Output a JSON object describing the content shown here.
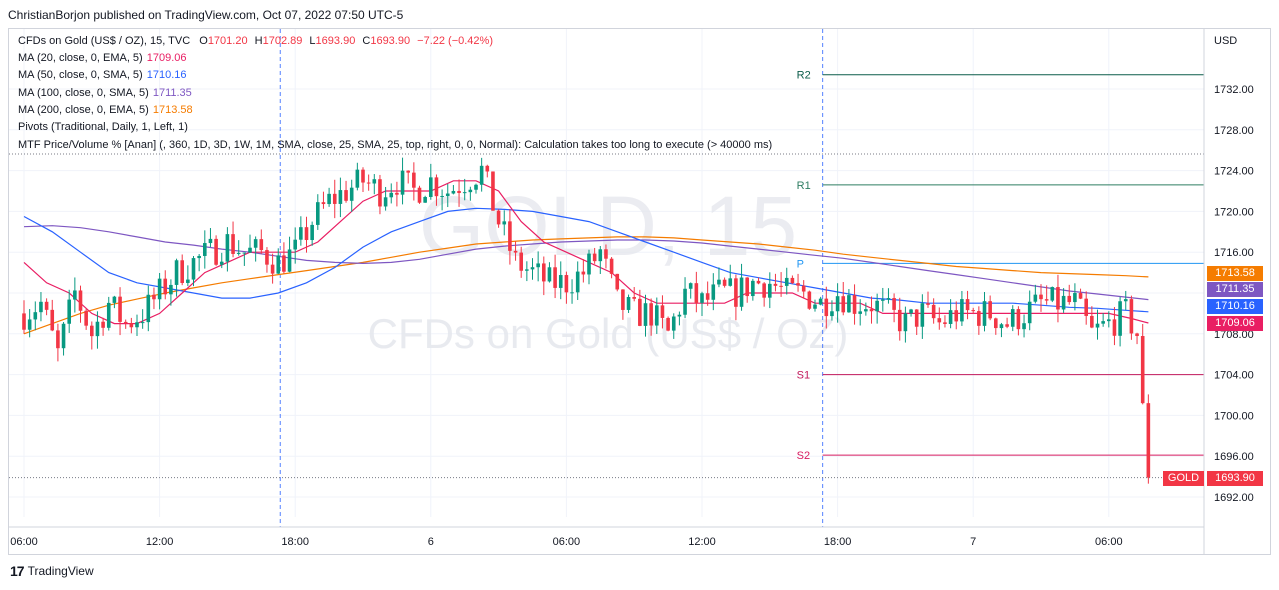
{
  "header": {
    "published_by": "ChristianBorjon published on TradingView.com, Oct 07, 2022 07:50 UTC-5"
  },
  "legend": {
    "instrument": "CFDs on Gold (US$ / OZ), 15, TVC",
    "ohlc": {
      "o_label": "O",
      "o": "1701.20",
      "h_label": "H",
      "h": "1702.89",
      "l_label": "L",
      "l": "1693.90",
      "c_label": "C",
      "c": "1693.90",
      "change": "−7.22 (−0.42%)"
    },
    "indicators": [
      {
        "label": "MA (20, close, 0, EMA, 5)",
        "value": "1709.06",
        "color": "#e91e63"
      },
      {
        "label": "MA (50, close, 0, SMA, 5)",
        "value": "1710.16",
        "color": "#2962ff"
      },
      {
        "label": "MA (100, close, 0, SMA, 5)",
        "value": "1711.35",
        "color": "#7e57c2"
      },
      {
        "label": "MA (200, close, 0, EMA, 5)",
        "value": "1713.58",
        "color": "#f57c00"
      },
      {
        "label": "Pivots (Traditional, Daily, 1, Left, 1)",
        "value": "",
        "color": "#131722"
      },
      {
        "label": "MTF Price/Volume % [Anan] (, 360, 1D, 3D, 1W, 1M, SMA, close, 25, SMA, 25, top, right, 0, 0, Normal): Calculation takes too long to execute (> 40000 ms)",
        "value": "",
        "color": "#131722"
      }
    ]
  },
  "watermark": {
    "symbol": "GOLD, 15",
    "name": "CFDs on Gold (US$ / OZ)"
  },
  "footer": {
    "logo": "17",
    "brand": "TradingView"
  },
  "chart_data": {
    "type": "candlestick",
    "currency": "USD",
    "ylim": [
      1690,
      1736
    ],
    "y_ticks": [
      1692,
      1696,
      1700,
      1704,
      1708,
      1712,
      1716,
      1720,
      1724,
      1728,
      1732
    ],
    "y_tick_labels": [
      "1692.00",
      "1696.00",
      "1700.00",
      "1704.00",
      "1708.00",
      "1712.00",
      "1716.00",
      "1720.00",
      "1724.00",
      "1728.00",
      "1732.00"
    ],
    "x_ticks": [
      {
        "label": "06:00",
        "bar": 0
      },
      {
        "label": "12:00",
        "bar": 24
      },
      {
        "label": "18:00",
        "bar": 48
      },
      {
        "label": "6",
        "bar": 72
      },
      {
        "label": "06:00",
        "bar": 96
      },
      {
        "label": "12:00",
        "bar": 120
      },
      {
        "label": "18:00",
        "bar": 144
      },
      {
        "label": "7",
        "bar": 168
      },
      {
        "label": "06:00",
        "bar": 192
      }
    ],
    "session_breaks": [
      45,
      141
    ],
    "pivots": [
      {
        "name": "R2",
        "value": 1733.4,
        "color": "#0b5d4a",
        "from_bar": 141
      },
      {
        "name": "R1",
        "value": 1722.6,
        "color": "#2e7d62",
        "from_bar": 141
      },
      {
        "name": "P",
        "value": 1714.9,
        "color": "#2196f3",
        "from_bar": 141
      },
      {
        "name": "S1",
        "value": 1704.0,
        "color": "#c2185b",
        "from_bar": 141
      },
      {
        "name": "S2",
        "value": 1696.1,
        "color": "#d81b60",
        "from_bar": 141
      }
    ],
    "last_price": {
      "symbol": "GOLD",
      "value": "1693.90",
      "y": 1693.9
    },
    "ma_tags": [
      {
        "name": "MA200",
        "value": "1713.58",
        "y": 1713.58,
        "color": "#f57c00"
      },
      {
        "name": "MA100",
        "value": "1711.35",
        "y": 1711.35,
        "color": "#7e57c2"
      },
      {
        "name": "MA50",
        "value": "1710.16",
        "y": 1710.16,
        "color": "#2962ff"
      },
      {
        "name": "MA20",
        "value": "1709.06",
        "y": 1709.06,
        "color": "#e91e63"
      }
    ],
    "series": {
      "close_path": [
        [
          0,
          1710
        ],
        [
          3,
          1711
        ],
        [
          6,
          1706
        ],
        [
          9,
          1712
        ],
        [
          12,
          1708
        ],
        [
          15,
          1711
        ],
        [
          18,
          1709
        ],
        [
          21,
          1710
        ],
        [
          24,
          1712
        ],
        [
          27,
          1714
        ],
        [
          30,
          1715
        ],
        [
          33,
          1716
        ],
        [
          36,
          1717
        ],
        [
          39,
          1716
        ],
        [
          42,
          1716
        ],
        [
          45,
          1715
        ],
        [
          48,
          1716
        ],
        [
          51,
          1719
        ],
        [
          54,
          1721
        ],
        [
          57,
          1722
        ],
        [
          60,
          1723
        ],
        [
          63,
          1722
        ],
        [
          66,
          1723
        ],
        [
          69,
          1722
        ],
        [
          72,
          1723
        ],
        [
          75,
          1722
        ],
        [
          78,
          1723
        ],
        [
          81,
          1724
        ],
        [
          84,
          1719
        ],
        [
          87,
          1715
        ],
        [
          90,
          1714
        ],
        [
          93,
          1713
        ],
        [
          96,
          1713
        ],
        [
          99,
          1714
        ],
        [
          102,
          1716
        ],
        [
          105,
          1711
        ],
        [
          108,
          1710
        ],
        [
          111,
          1710
        ],
        [
          114,
          1708
        ],
        [
          117,
          1712
        ],
        [
          120,
          1711
        ],
        [
          123,
          1712
        ],
        [
          126,
          1712
        ],
        [
          129,
          1713
        ],
        [
          132,
          1713
        ],
        [
          135,
          1712
        ],
        [
          138,
          1712
        ],
        [
          141,
          1711
        ],
        [
          144,
          1712
        ],
        [
          147,
          1711
        ],
        [
          150,
          1711
        ],
        [
          153,
          1710
        ],
        [
          156,
          1709
        ],
        [
          159,
          1710
        ],
        [
          162,
          1709
        ],
        [
          165,
          1710
        ],
        [
          168,
          1710
        ],
        [
          171,
          1710
        ],
        [
          174,
          1709
        ],
        [
          177,
          1710
        ],
        [
          180,
          1711
        ],
        [
          183,
          1711
        ],
        [
          186,
          1711
        ],
        [
          189,
          1708
        ],
        [
          192,
          1709
        ],
        [
          195,
          1710
        ],
        [
          197,
          1708
        ],
        [
          198,
          1700
        ],
        [
          199,
          1693.9
        ]
      ],
      "ma20": [
        [
          0,
          1715
        ],
        [
          4,
          1713
        ],
        [
          8,
          1712
        ],
        [
          12,
          1710
        ],
        [
          16,
          1709
        ],
        [
          20,
          1709
        ],
        [
          24,
          1710
        ],
        [
          28,
          1712
        ],
        [
          32,
          1714
        ],
        [
          36,
          1715
        ],
        [
          40,
          1716
        ],
        [
          44,
          1716
        ],
        [
          48,
          1716
        ],
        [
          52,
          1717
        ],
        [
          56,
          1719
        ],
        [
          60,
          1721
        ],
        [
          64,
          1722
        ],
        [
          68,
          1722
        ],
        [
          72,
          1722
        ],
        [
          76,
          1723
        ],
        [
          80,
          1723
        ],
        [
          84,
          1722
        ],
        [
          88,
          1719
        ],
        [
          92,
          1717
        ],
        [
          96,
          1716
        ],
        [
          100,
          1715
        ],
        [
          104,
          1714
        ],
        [
          108,
          1712
        ],
        [
          112,
          1711
        ],
        [
          116,
          1711
        ],
        [
          120,
          1711
        ],
        [
          124,
          1711
        ],
        [
          128,
          1712
        ],
        [
          132,
          1712
        ],
        [
          136,
          1712
        ],
        [
          140,
          1711
        ],
        [
          144,
          1711
        ],
        [
          148,
          1711
        ],
        [
          152,
          1710
        ],
        [
          156,
          1710
        ],
        [
          160,
          1710
        ],
        [
          164,
          1710
        ],
        [
          168,
          1710
        ],
        [
          172,
          1710
        ],
        [
          176,
          1710
        ],
        [
          180,
          1710
        ],
        [
          184,
          1710
        ],
        [
          188,
          1710
        ],
        [
          192,
          1710
        ],
        [
          196,
          1709.5
        ],
        [
          199,
          1709.06
        ]
      ],
      "ma50": [
        [
          0,
          1719.5
        ],
        [
          5,
          1718
        ],
        [
          10,
          1716
        ],
        [
          15,
          1714
        ],
        [
          20,
          1713
        ],
        [
          25,
          1712.5
        ],
        [
          30,
          1712
        ],
        [
          35,
          1711.5
        ],
        [
          40,
          1711.5
        ],
        [
          45,
          1712
        ],
        [
          50,
          1713
        ],
        [
          55,
          1714.5
        ],
        [
          60,
          1716.5
        ],
        [
          65,
          1718
        ],
        [
          70,
          1719
        ],
        [
          75,
          1720
        ],
        [
          80,
          1720.3
        ],
        [
          85,
          1720.2
        ],
        [
          90,
          1720
        ],
        [
          95,
          1719.5
        ],
        [
          100,
          1719
        ],
        [
          105,
          1718
        ],
        [
          110,
          1717
        ],
        [
          115,
          1716
        ],
        [
          120,
          1715
        ],
        [
          125,
          1714
        ],
        [
          130,
          1713.5
        ],
        [
          135,
          1713
        ],
        [
          140,
          1712.5
        ],
        [
          145,
          1712
        ],
        [
          150,
          1711.5
        ],
        [
          155,
          1711.3
        ],
        [
          160,
          1711
        ],
        [
          165,
          1711
        ],
        [
          170,
          1711
        ],
        [
          175,
          1711
        ],
        [
          180,
          1710.8
        ],
        [
          185,
          1710.6
        ],
        [
          190,
          1710.5
        ],
        [
          195,
          1710.3
        ],
        [
          199,
          1710.16
        ]
      ],
      "ma100": [
        [
          0,
          1718.5
        ],
        [
          5,
          1718.6
        ],
        [
          10,
          1718.4
        ],
        [
          15,
          1718
        ],
        [
          20,
          1717.5
        ],
        [
          25,
          1717
        ],
        [
          30,
          1716.7
        ],
        [
          35,
          1716.3
        ],
        [
          40,
          1716
        ],
        [
          45,
          1715.6
        ],
        [
          50,
          1715.2
        ],
        [
          55,
          1715
        ],
        [
          60,
          1714.9
        ],
        [
          65,
          1715
        ],
        [
          70,
          1715.3
        ],
        [
          75,
          1715.8
        ],
        [
          80,
          1716.3
        ],
        [
          85,
          1716.6
        ],
        [
          90,
          1716.8
        ],
        [
          95,
          1717
        ],
        [
          100,
          1717.1
        ],
        [
          105,
          1717.2
        ],
        [
          110,
          1717.2
        ],
        [
          115,
          1717.1
        ],
        [
          120,
          1716.9
        ],
        [
          125,
          1716.6
        ],
        [
          130,
          1716.3
        ],
        [
          135,
          1716
        ],
        [
          140,
          1715.7
        ],
        [
          145,
          1715.4
        ],
        [
          150,
          1715
        ],
        [
          155,
          1714.6
        ],
        [
          160,
          1714.2
        ],
        [
          165,
          1713.8
        ],
        [
          170,
          1713.4
        ],
        [
          175,
          1713
        ],
        [
          180,
          1712.6
        ],
        [
          185,
          1712.2
        ],
        [
          190,
          1711.9
        ],
        [
          195,
          1711.6
        ],
        [
          199,
          1711.35
        ]
      ],
      "ma200": [
        [
          0,
          1708
        ],
        [
          5,
          1709
        ],
        [
          10,
          1710
        ],
        [
          15,
          1710.8
        ],
        [
          20,
          1711.4
        ],
        [
          25,
          1712
        ],
        [
          30,
          1712.5
        ],
        [
          35,
          1713
        ],
        [
          40,
          1713.4
        ],
        [
          45,
          1713.8
        ],
        [
          50,
          1714.2
        ],
        [
          55,
          1714.6
        ],
        [
          60,
          1715
        ],
        [
          65,
          1715.5
        ],
        [
          70,
          1716
        ],
        [
          75,
          1716.4
        ],
        [
          80,
          1716.8
        ],
        [
          85,
          1717
        ],
        [
          90,
          1717.2
        ],
        [
          95,
          1717.3
        ],
        [
          100,
          1717.4
        ],
        [
          105,
          1717.5
        ],
        [
          110,
          1717.5
        ],
        [
          115,
          1717.4
        ],
        [
          120,
          1717.2
        ],
        [
          125,
          1717
        ],
        [
          130,
          1716.8
        ],
        [
          135,
          1716.5
        ],
        [
          140,
          1716.2
        ],
        [
          145,
          1715.8
        ],
        [
          150,
          1715.5
        ],
        [
          155,
          1715.2
        ],
        [
          160,
          1714.9
        ],
        [
          165,
          1714.6
        ],
        [
          170,
          1714.4
        ],
        [
          175,
          1714.2
        ],
        [
          180,
          1714
        ],
        [
          185,
          1713.9
        ],
        [
          190,
          1713.8
        ],
        [
          195,
          1713.7
        ],
        [
          199,
          1713.58
        ]
      ]
    },
    "colors": {
      "up": "#089981",
      "down": "#f23645",
      "grid": "#f0f3fa",
      "axis_text": "#131722",
      "session": "#2962ff"
    }
  }
}
